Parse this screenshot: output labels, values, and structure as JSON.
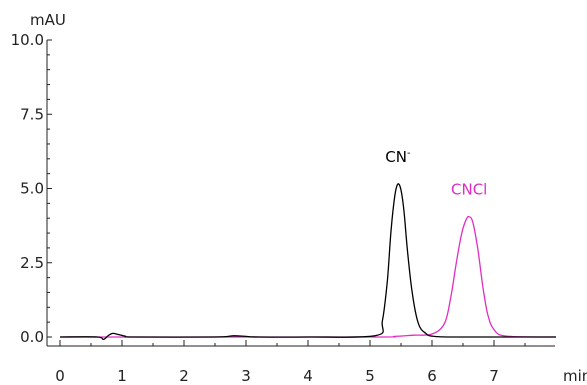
{
  "chart_data": {
    "type": "line",
    "title": "",
    "xlabel": "min",
    "ylabel": "mAU",
    "xlim": [
      0,
      8
    ],
    "ylim": [
      0,
      10
    ],
    "x_ticks": [
      0,
      1,
      2,
      3,
      4,
      5,
      6,
      7
    ],
    "x_tick_labels": [
      "0",
      "1",
      "2",
      "3",
      "4",
      "5",
      "6",
      "7"
    ],
    "y_ticks": [
      0,
      2.5,
      5,
      7.5,
      10
    ],
    "y_tick_labels": [
      "0.0",
      "2.5",
      "5.0",
      "7.5",
      "10.0"
    ],
    "grid": false,
    "legend": "none",
    "series": [
      {
        "name": "CN-",
        "color": "#000000",
        "x": [
          0,
          0.6,
          0.7,
          0.78,
          0.85,
          0.95,
          1.05,
          1.2,
          2.5,
          2.8,
          3.0,
          3.2,
          4.0,
          5.1,
          5.2,
          5.28,
          5.34,
          5.4,
          5.45,
          5.5,
          5.55,
          5.6,
          5.68,
          5.78,
          5.9,
          6.0,
          6.3,
          7.0,
          8.0
        ],
        "values": [
          0,
          0,
          -0.08,
          0.05,
          0.12,
          0.08,
          0.03,
          0,
          0,
          0.04,
          0.02,
          0,
          0,
          0.05,
          0.55,
          1.9,
          3.6,
          4.75,
          5.15,
          4.95,
          4.2,
          3.0,
          1.5,
          0.45,
          0.12,
          0.03,
          0,
          0,
          0
        ]
      },
      {
        "name": "CNCl",
        "color": "#e02ec4",
        "x": [
          0,
          1.2,
          5.0,
          5.4,
          5.7,
          6.0,
          6.2,
          6.3,
          6.4,
          6.48,
          6.55,
          6.6,
          6.66,
          6.74,
          6.82,
          6.9,
          7.0,
          7.2,
          8.0
        ],
        "values": [
          0,
          0,
          0,
          0.02,
          0.06,
          0.1,
          0.45,
          1.3,
          2.6,
          3.5,
          3.95,
          4.05,
          3.85,
          2.95,
          1.7,
          0.75,
          0.25,
          0.03,
          0
        ]
      }
    ],
    "annotations": [
      {
        "text": "CN",
        "superscript": "-",
        "color": "#000000",
        "x": 5.45,
        "y": 5.9
      },
      {
        "text": "CNCl",
        "superscript": "",
        "color": "#e02ec4",
        "x": 6.6,
        "y": 4.8
      }
    ]
  }
}
